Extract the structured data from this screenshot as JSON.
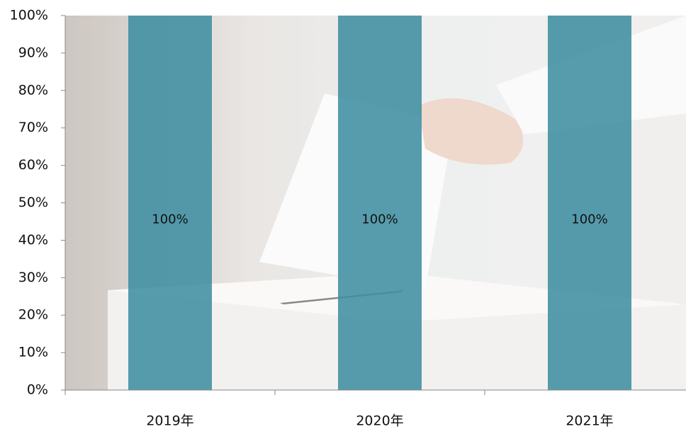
{
  "chart_data": {
    "type": "bar",
    "categories": [
      "2019年",
      "2020年",
      "2021年"
    ],
    "values": [
      100,
      100,
      100
    ],
    "value_labels": [
      "100%",
      "100%",
      "100%"
    ],
    "color": "#3f8ea2",
    "ylim": [
      0,
      100
    ],
    "yticks": [
      {
        "value": 0,
        "label": "0%"
      },
      {
        "value": 10,
        "label": "10%"
      },
      {
        "value": 20,
        "label": "20%"
      },
      {
        "value": 30,
        "label": "30%"
      },
      {
        "value": 40,
        "label": "40%"
      },
      {
        "value": 50,
        "label": "50%"
      },
      {
        "value": 60,
        "label": "60%"
      },
      {
        "value": 70,
        "label": "70%"
      },
      {
        "value": 80,
        "label": "80%"
      },
      {
        "value": 90,
        "label": "90%"
      },
      {
        "value": 100,
        "label": "100%"
      }
    ],
    "grid": false
  }
}
